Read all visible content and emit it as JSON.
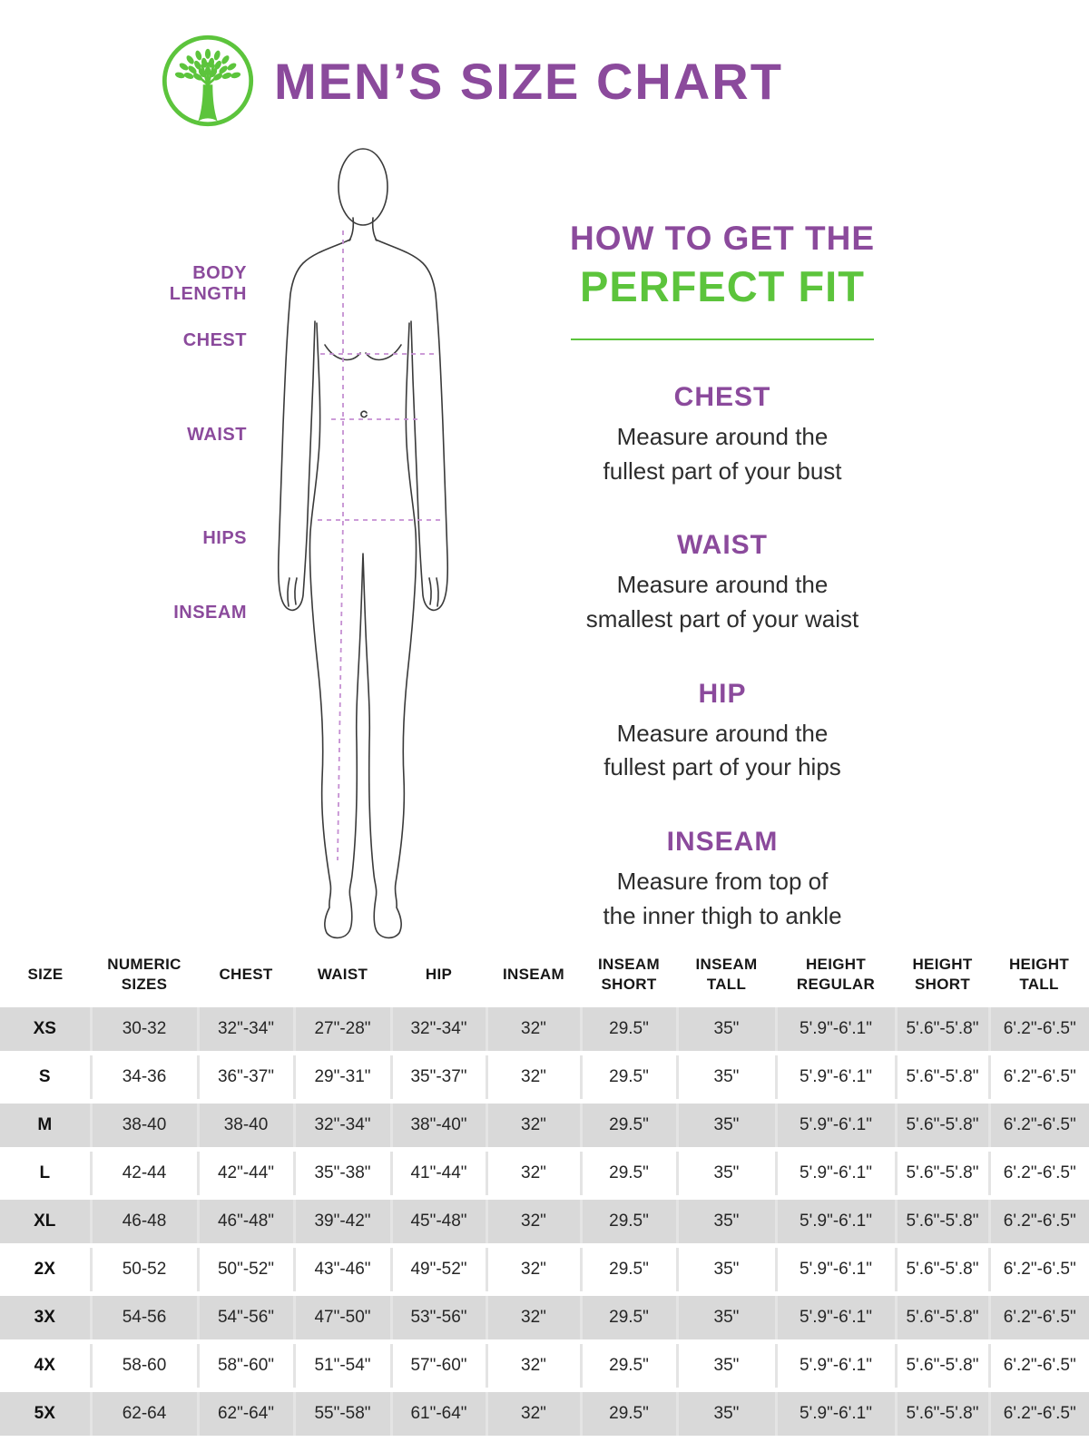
{
  "header": {
    "title": "MEN’S SIZE CHART",
    "logo": "tree-logo"
  },
  "figure_labels": [
    "BODY LENGTH",
    "CHEST",
    "WAIST",
    "HIPS",
    "INSEAM"
  ],
  "fit_guide": {
    "title_line1": "HOW TO GET THE",
    "title_line2": "PERFECT FIT",
    "sections": [
      {
        "heading": "CHEST",
        "line1": "Measure around the",
        "line2": "fullest part of your bust"
      },
      {
        "heading": "WAIST",
        "line1": "Measure around the",
        "line2": "smallest part of your waist"
      },
      {
        "heading": "HIP",
        "line1": "Measure around the",
        "line2": "fullest part of your hips"
      },
      {
        "heading": "INSEAM",
        "line1": "Measure from top of",
        "line2": "the inner thigh to ankle"
      }
    ]
  },
  "size_table": {
    "columns": [
      "SIZE",
      "NUMERIC SIZES",
      "CHEST",
      "WAIST",
      "HIP",
      "INSEAM",
      "INSEAM SHORT",
      "INSEAM TALL",
      "HEIGHT REGULAR",
      "HEIGHT SHORT",
      "HEIGHT TALL"
    ],
    "rows": [
      [
        "XS",
        "30-32",
        "32\"-34\"",
        "27\"-28\"",
        "32\"-34\"",
        "32\"",
        "29.5\"",
        "35\"",
        "5'.9\"-6'.1\"",
        "5'.6\"-5'.8\"",
        "6'.2\"-6'.5\""
      ],
      [
        "S",
        "34-36",
        "36\"-37\"",
        "29\"-31\"",
        "35\"-37\"",
        "32\"",
        "29.5\"",
        "35\"",
        "5'.9\"-6'.1\"",
        "5'.6\"-5'.8\"",
        "6'.2\"-6'.5\""
      ],
      [
        "M",
        "38-40",
        "38-40",
        "32\"-34\"",
        "38\"-40\"",
        "32\"",
        "29.5\"",
        "35\"",
        "5'.9\"-6'.1\"",
        "5'.6\"-5'.8\"",
        "6'.2\"-6'.5\""
      ],
      [
        "L",
        "42-44",
        "42\"-44\"",
        "35\"-38\"",
        "41\"-44\"",
        "32\"",
        "29.5\"",
        "35\"",
        "5'.9\"-6'.1\"",
        "5'.6\"-5'.8\"",
        "6'.2\"-6'.5\""
      ],
      [
        "XL",
        "46-48",
        "46\"-48\"",
        "39\"-42\"",
        "45\"-48\"",
        "32\"",
        "29.5\"",
        "35\"",
        "5'.9\"-6'.1\"",
        "5'.6\"-5'.8\"",
        "6'.2\"-6'.5\""
      ],
      [
        "2X",
        "50-52",
        "50\"-52\"",
        "43\"-46\"",
        "49\"-52\"",
        "32\"",
        "29.5\"",
        "35\"",
        "5'.9\"-6'.1\"",
        "5'.6\"-5'.8\"",
        "6'.2\"-6'.5\""
      ],
      [
        "3X",
        "54-56",
        "54\"-56\"",
        "47\"-50\"",
        "53\"-56\"",
        "32\"",
        "29.5\"",
        "35\"",
        "5'.9\"-6'.1\"",
        "5'.6\"-5'.8\"",
        "6'.2\"-6'.5\""
      ],
      [
        "4X",
        "58-60",
        "58\"-60\"",
        "51\"-54\"",
        "57\"-60\"",
        "32\"",
        "29.5\"",
        "35\"",
        "5'.9\"-6'.1\"",
        "5'.6\"-5'.8\"",
        "6'.2\"-6'.5\""
      ],
      [
        "5X",
        "62-64",
        "62\"-64\"",
        "55\"-58\"",
        "61\"-64\"",
        "32\"",
        "29.5\"",
        "35\"",
        "5'.9\"-6'.1\"",
        "5'.6\"-5'.8\"",
        "6'.2\"-6'.5\""
      ]
    ]
  },
  "colors": {
    "brand_purple": "#8b4a9c",
    "brand_green": "#5cc43c",
    "row_gray": "#d9d9d9",
    "dash_purple": "#c58fd2",
    "text_dark": "#262626"
  }
}
